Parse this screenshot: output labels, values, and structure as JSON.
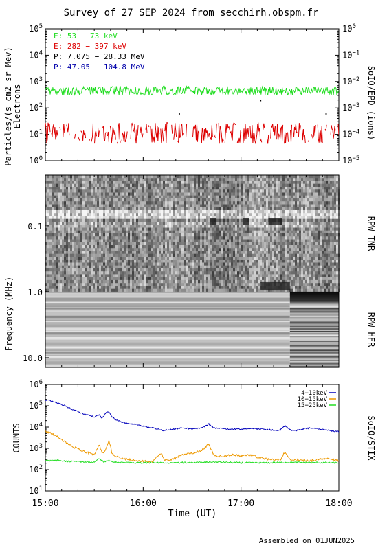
{
  "title": "Survey of 27 SEP 2024 from secchirh.obspm.fr",
  "footer": "Assembled on 01JUN2025",
  "colors": {
    "electron_low": "#22dd22",
    "electron_high": "#dd0000",
    "proton_low": "#000000",
    "proton_high": "#0000aa",
    "stix_low": "#0000bb",
    "stix_mid": "#ee9900",
    "stix_high": "#22dd22"
  },
  "chart_data": [
    {
      "type": "line",
      "panel": "SolO/EPD",
      "right_label": "SoIO/EPD (ions)",
      "ylabel": "Particles/(s cm2 sr Mev)",
      "ylabel2": "Electrons",
      "yscale": "log",
      "ylim": [
        1,
        100000
      ],
      "yticks": [
        {
          "base": "10",
          "exp": "0"
        },
        {
          "base": "10",
          "exp": "1"
        },
        {
          "base": "10",
          "exp": "2"
        },
        {
          "base": "10",
          "exp": "3"
        },
        {
          "base": "10",
          "exp": "4"
        },
        {
          "base": "10",
          "exp": "5"
        }
      ],
      "y2scale": "log",
      "y2lim": [
        1e-05,
        1
      ],
      "y2ticks": [
        {
          "base": "10",
          "exp": "−5"
        },
        {
          "base": "10",
          "exp": "−4"
        },
        {
          "base": "10",
          "exp": "−3"
        },
        {
          "base": "10",
          "exp": "−2"
        },
        {
          "base": "10",
          "exp": "−1"
        },
        {
          "base": "10",
          "exp": "0"
        }
      ],
      "x_hours": [
        15,
        18
      ],
      "legend": [
        {
          "label": "E: 53 − 73 keV",
          "color": "#22dd22"
        },
        {
          "label": "E: 282 − 397 keV",
          "color": "#dd0000"
        },
        {
          "label": "P: 7.075 − 28.33 MeV",
          "color": "#000000"
        },
        {
          "label": "P: 47.05 − 104.8 MeV",
          "color": "#0000aa"
        }
      ],
      "series": [
        {
          "name": "E: 53 − 73 keV",
          "level": 450,
          "x": [
            15,
            18
          ]
        },
        {
          "name": "E: 282 − 397 keV",
          "level": 10,
          "x": [
            15,
            18
          ]
        }
      ],
      "proton_points": [
        {
          "x": 16.37,
          "y": 60
        },
        {
          "x": 17.2,
          "y": 190
        },
        {
          "x": 17.87,
          "y": 60
        }
      ]
    },
    {
      "type": "heatmap",
      "panel": "RPW",
      "ylabel": "Frequency (MHz)",
      "yscale": "log",
      "yticklabels": [
        "0.1",
        "1.0",
        "10.0"
      ],
      "ytickvalues": [
        0.1,
        1.0,
        10.0
      ],
      "ylim": [
        0.017,
        14
      ],
      "boundary_mhz": 1.0,
      "upper_label": "RPW TNR",
      "lower_label": "RPW HFR",
      "upper_bursts_hours": [
        [
          16.68,
          16.75
        ],
        [
          17.02,
          17.08
        ],
        [
          17.28,
          17.42
        ]
      ],
      "lower_change_hour": 17.5
    },
    {
      "type": "line",
      "panel": "SolO/STIX",
      "right_label": "SoIO/STIX",
      "ylabel": "COUNTS",
      "yscale": "log",
      "ylim": [
        10,
        1000000
      ],
      "yticks": [
        {
          "base": "10",
          "exp": "1"
        },
        {
          "base": "10",
          "exp": "2"
        },
        {
          "base": "10",
          "exp": "3"
        },
        {
          "base": "10",
          "exp": "4"
        },
        {
          "base": "10",
          "exp": "5"
        },
        {
          "base": "10",
          "exp": "6"
        }
      ],
      "xlabel": "Time (UT)",
      "xticklabels": [
        "15:00",
        "16:00",
        "17:00",
        "18:00"
      ],
      "xtickvalues": [
        15,
        16,
        17,
        18
      ],
      "xlim": [
        15,
        18
      ],
      "legend": [
        {
          "label": "4−10keV",
          "color": "#0000bb"
        },
        {
          "label": "10−15keV",
          "color": "#ee9900"
        },
        {
          "label": "15−25keV",
          "color": "#22dd22"
        }
      ],
      "series": [
        {
          "name": "4−10keV",
          "x": [
            15.0,
            15.05,
            15.1,
            15.2,
            15.3,
            15.4,
            15.5,
            15.55,
            15.58,
            15.62,
            15.65,
            15.68,
            15.72,
            15.8,
            15.9,
            16.0,
            16.1,
            16.2,
            16.3,
            16.4,
            16.5,
            16.6,
            16.67,
            16.72,
            16.8,
            16.9,
            17.0,
            17.1,
            17.2,
            17.3,
            17.4,
            17.45,
            17.5,
            17.55,
            17.6,
            17.7,
            17.8,
            17.9,
            18.0
          ],
          "y": [
            180000,
            175000,
            150000,
            100000,
            60000,
            40000,
            30000,
            38000,
            26000,
            48000,
            52000,
            30000,
            22000,
            16000,
            14000,
            11000,
            9000,
            7000,
            8000,
            9000,
            8000,
            9000,
            14000,
            9000,
            8500,
            8000,
            8000,
            8500,
            8000,
            7500,
            7000,
            12000,
            7500,
            6500,
            7500,
            9000,
            8000,
            7000,
            6000
          ]
        },
        {
          "name": "10−15keV",
          "x": [
            15.0,
            15.05,
            15.1,
            15.2,
            15.3,
            15.4,
            15.5,
            15.55,
            15.58,
            15.62,
            15.65,
            15.68,
            15.72,
            15.8,
            15.9,
            16.0,
            16.1,
            16.18,
            16.22,
            16.3,
            16.4,
            16.5,
            16.6,
            16.67,
            16.72,
            16.8,
            16.9,
            17.0,
            17.1,
            17.2,
            17.3,
            17.4,
            17.45,
            17.5,
            17.6,
            17.7,
            17.8,
            17.9,
            18.0
          ],
          "y": [
            6000,
            5500,
            4000,
            2000,
            1100,
            700,
            500,
            1500,
            600,
            900,
            2500,
            600,
            400,
            320,
            280,
            250,
            240,
            600,
            280,
            300,
            500,
            600,
            800,
            1600,
            500,
            400,
            500,
            450,
            500,
            350,
            300,
            280,
            700,
            300,
            280,
            260,
            300,
            350,
            250
          ]
        },
        {
          "name": "15−25keV",
          "x": [
            15.0,
            15.1,
            15.2,
            15.3,
            15.4,
            15.5,
            15.55,
            15.6,
            15.65,
            15.7,
            15.8,
            16.0,
            16.3,
            16.6,
            16.7,
            17.0,
            17.3,
            17.5,
            17.7,
            18.0
          ],
          "y": [
            260,
            280,
            250,
            240,
            230,
            220,
            330,
            230,
            270,
            220,
            210,
            210,
            210,
            220,
            230,
            210,
            210,
            220,
            215,
            210
          ]
        }
      ]
    }
  ]
}
